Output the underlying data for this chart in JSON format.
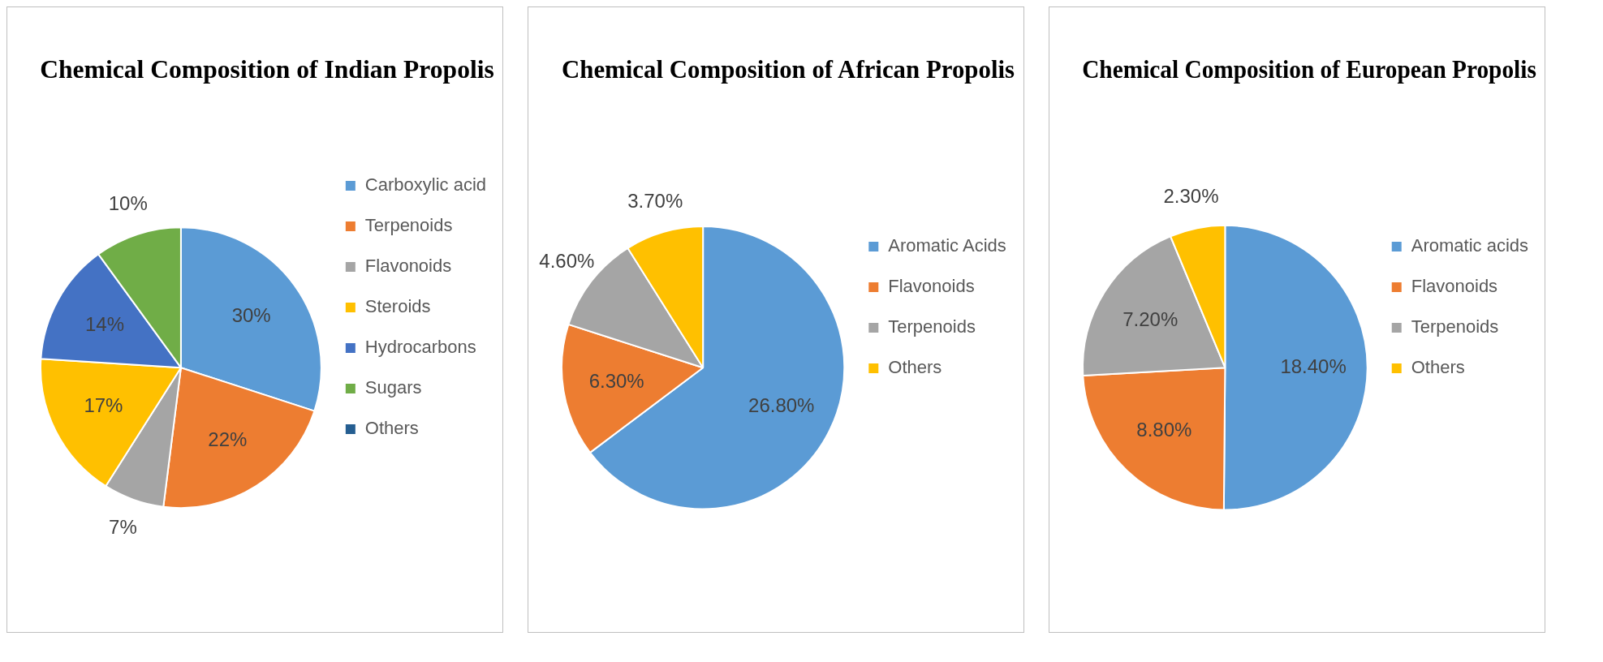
{
  "chart_data": [
    {
      "type": "pie",
      "title": "Chemical Composition of Indian Propolis",
      "categories": [
        "Carboxylic acid",
        "Terpenoids",
        "Flavonoids",
        "Steroids",
        "Hydrocarbons",
        "Sugars",
        "Others"
      ],
      "values": [
        30,
        22,
        7,
        17,
        14,
        10,
        0
      ],
      "value_labels": [
        "30%",
        "22%",
        "7%",
        "17%",
        "14%",
        "10%",
        null
      ],
      "colors": [
        "#5b9bd5",
        "#ed7d31",
        "#a5a5a5",
        "#ffc000",
        "#4472c4",
        "#70ad47",
        "#255e91"
      ],
      "legend": "right"
    },
    {
      "type": "pie",
      "title": "Chemical Composition of African Propolis",
      "categories": [
        "Aromatic Acids",
        "Flavonoids",
        "Terpenoids",
        "Others"
      ],
      "values": [
        26.8,
        6.3,
        4.6,
        3.7
      ],
      "value_labels": [
        "26.80%",
        "6.30%",
        "4.60%",
        "3.70%"
      ],
      "colors": [
        "#5b9bd5",
        "#ed7d31",
        "#a5a5a5",
        "#ffc000"
      ],
      "legend": "right"
    },
    {
      "type": "pie",
      "title": "Chemical Composition of European Propolis",
      "categories": [
        "Aromatic acids",
        "Flavonoids",
        "Terpenoids",
        "Others"
      ],
      "values": [
        18.4,
        8.8,
        7.2,
        2.3
      ],
      "value_labels": [
        "18.40%",
        "8.80%",
        "7.20%",
        "2.30%"
      ],
      "colors": [
        "#5b9bd5",
        "#ed7d31",
        "#a5a5a5",
        "#ffc000"
      ],
      "legend": "right"
    }
  ]
}
